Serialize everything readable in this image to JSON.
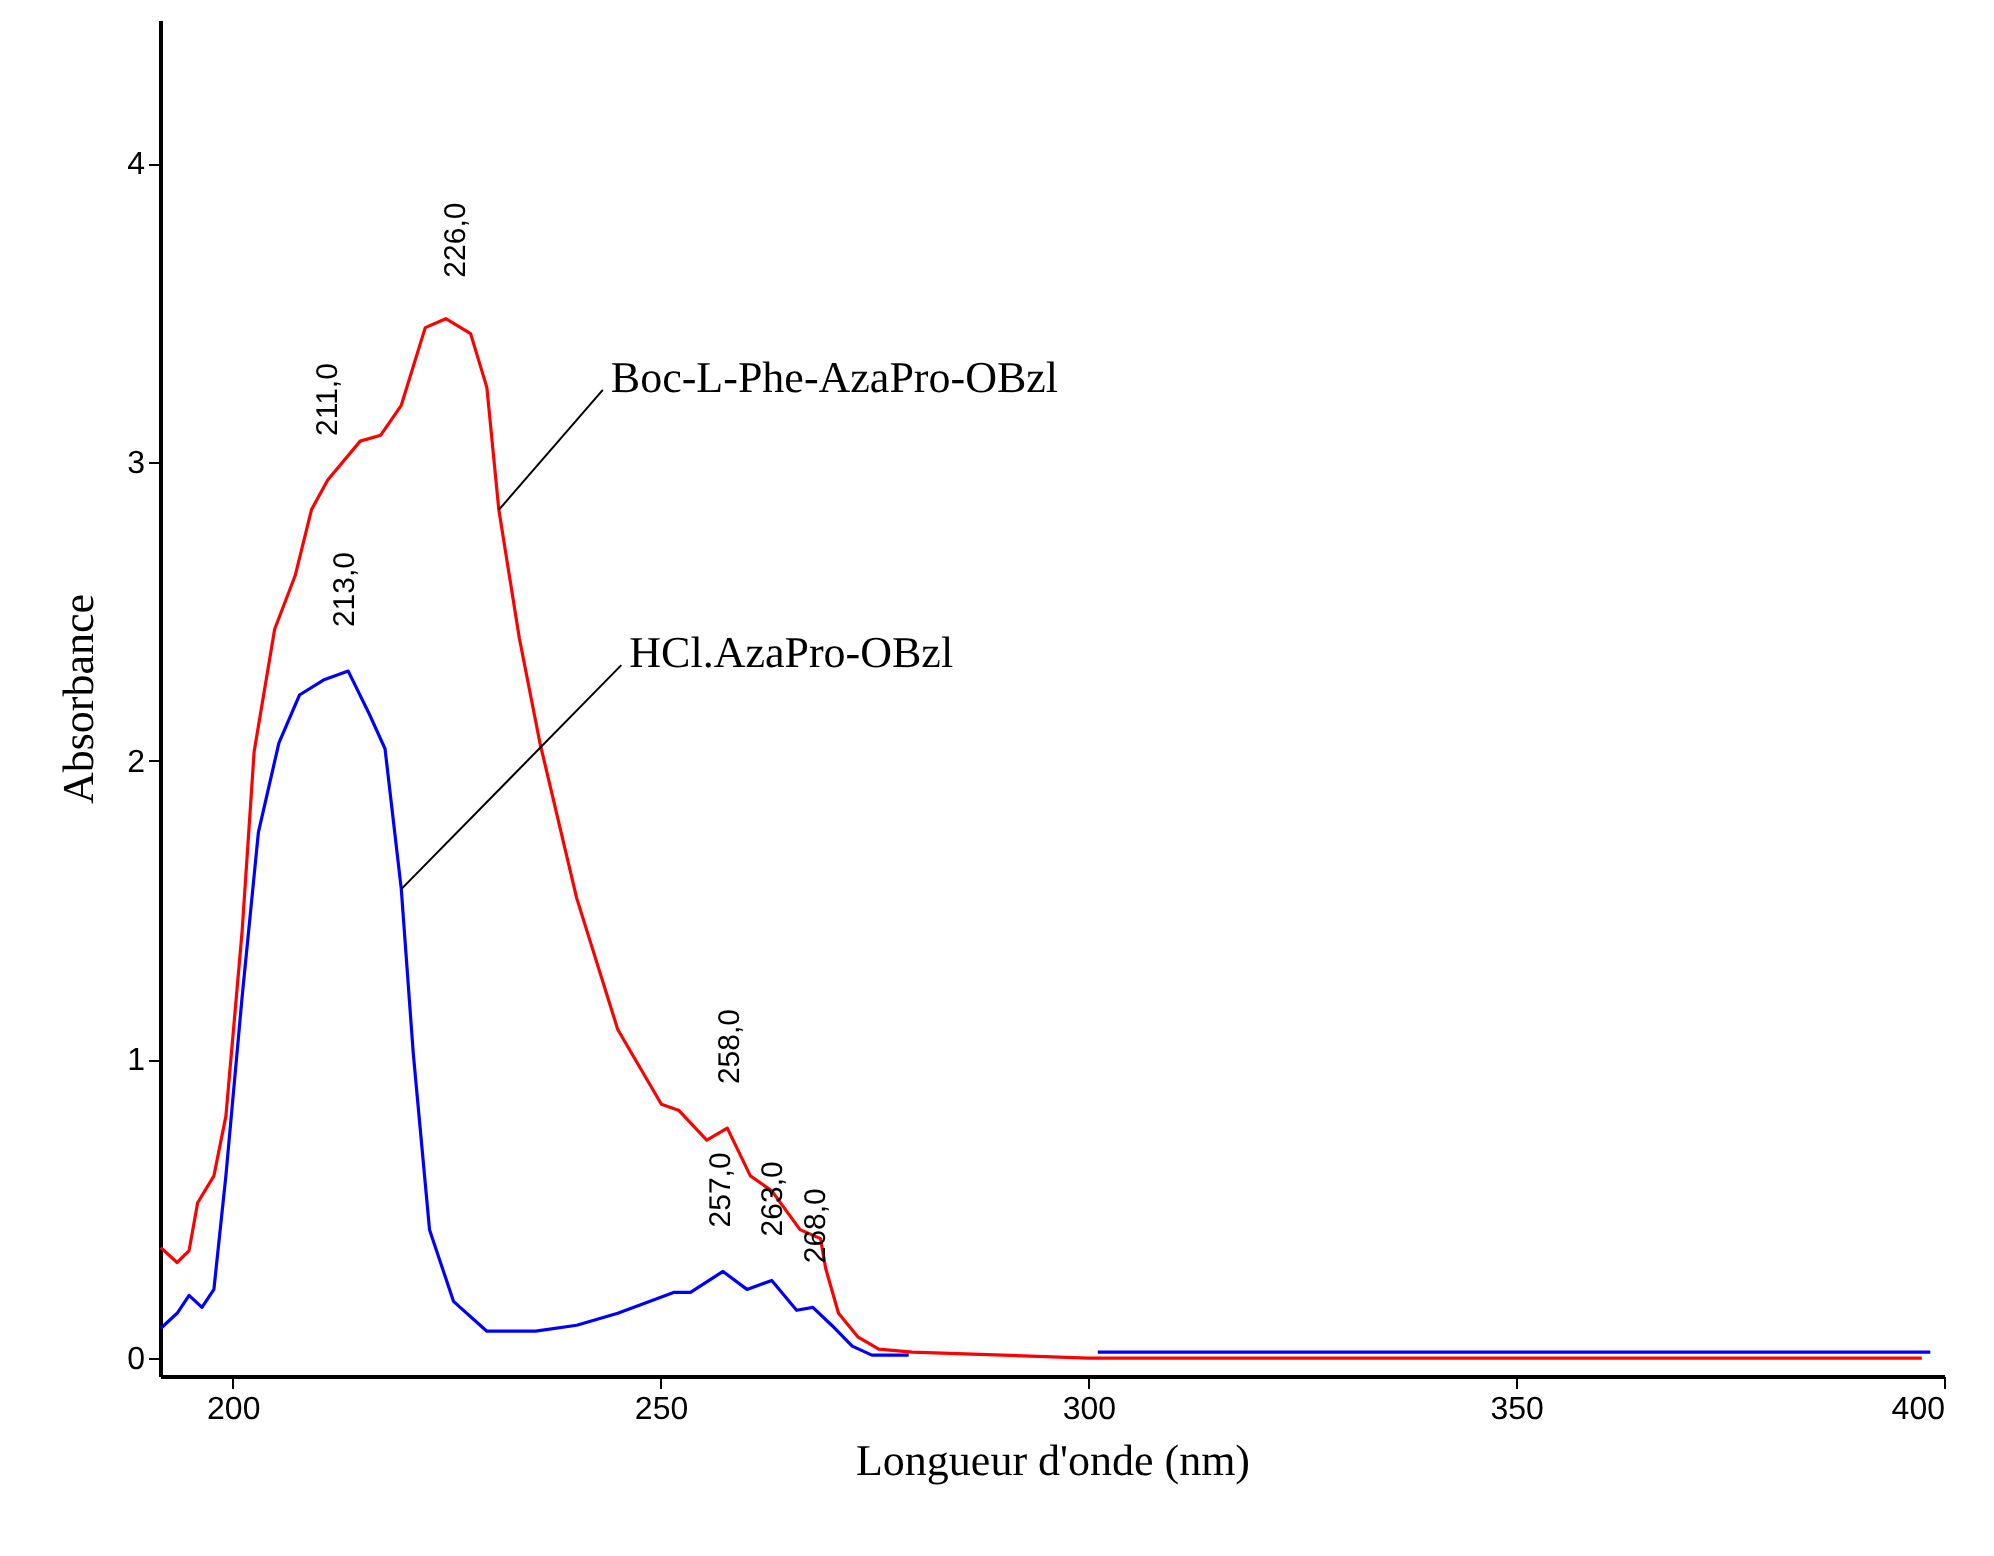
{
  "chart_data": {
    "type": "line",
    "xlabel": "Longueur d'onde (nm)",
    "ylabel": "Absorbance",
    "xlim": [
      191.5,
      400
    ],
    "ylim": [
      -0.06,
      4.48
    ],
    "xticks": [
      200,
      250,
      300,
      350,
      400
    ],
    "yticks": [
      0,
      1,
      2,
      3,
      4
    ],
    "grid": false,
    "legend": false,
    "marker": "none",
    "line_style": "solid",
    "series": [
      {
        "name": "Boc-L-Phe-AzaPro-OBzl",
        "color": "#ff0000",
        "x": [
          191.6,
          193.5,
          194.9,
          195.9,
          197.8,
          199.2,
          201.1,
          202.5,
          204.9,
          207.3,
          209.2,
          211.1,
          214.9,
          217.3,
          219.7,
          222.5,
          224.9,
          227.8,
          229.7,
          231.1,
          233.5,
          235.9,
          240.2,
          245.0,
          250.1,
          252.1,
          255.4,
          257.8,
          260.5,
          263.0,
          266.3,
          268.7,
          269.3,
          270.8,
          273.1,
          275.5,
          279.4,
          300,
          397.4
        ],
        "values": [
          0.37,
          0.32,
          0.36,
          0.52,
          0.61,
          0.81,
          1.43,
          2.03,
          2.44,
          2.62,
          2.84,
          2.94,
          3.07,
          3.09,
          3.19,
          3.45,
          3.48,
          3.43,
          3.25,
          2.84,
          2.41,
          2.06,
          1.54,
          1.1,
          0.85,
          0.83,
          0.73,
          0.77,
          0.61,
          0.56,
          0.43,
          0.4,
          0.3,
          0.15,
          0.07,
          0.03,
          0.02,
          0.0,
          0.0
        ]
      },
      {
        "name": "HCl.AzaPro-OBzl",
        "color": "#0000ff",
        "x": [
          191.6,
          193.5,
          194.9,
          196.4,
          197.8,
          199.2,
          201.1,
          203.0,
          205.4,
          207.8,
          210.6,
          213.5,
          215.9,
          217.8,
          219.7,
          221.1,
          223.0,
          225.8,
          229.7,
          235.4,
          240.2,
          245.0,
          251.6,
          253.5,
          257.3,
          260.1,
          263.0,
          265.9,
          267.8,
          270.0,
          272.4,
          274.7,
          279.0,
          290,
          301.1,
          398.4
        ],
        "values": [
          0.1,
          0.15,
          0.21,
          0.17,
          0.23,
          0.61,
          1.21,
          1.76,
          2.06,
          2.22,
          2.27,
          2.3,
          2.16,
          2.04,
          1.57,
          1.02,
          0.43,
          0.19,
          0.09,
          0.09,
          0.11,
          0.15,
          0.22,
          0.22,
          0.29,
          0.23,
          0.26,
          0.16,
          0.17,
          0.11,
          0.04,
          0.01,
          0.01,
          null,
          0.02,
          0.02
        ]
      }
    ],
    "annotations": [
      {
        "text": "211,0",
        "x": 211,
        "y": 2.94
      },
      {
        "text": "226,0",
        "x": 226,
        "y": 3.47
      },
      {
        "text": "213,0",
        "x": 213,
        "y": 2.3
      },
      {
        "text": "257,0",
        "x": 257,
        "y": 0.29
      },
      {
        "text": "258,0",
        "x": 258,
        "y": 0.77
      },
      {
        "text": "263,0",
        "x": 263,
        "y": 0.26
      },
      {
        "text": "268,0",
        "x": 268,
        "y": 0.17
      }
    ]
  }
}
